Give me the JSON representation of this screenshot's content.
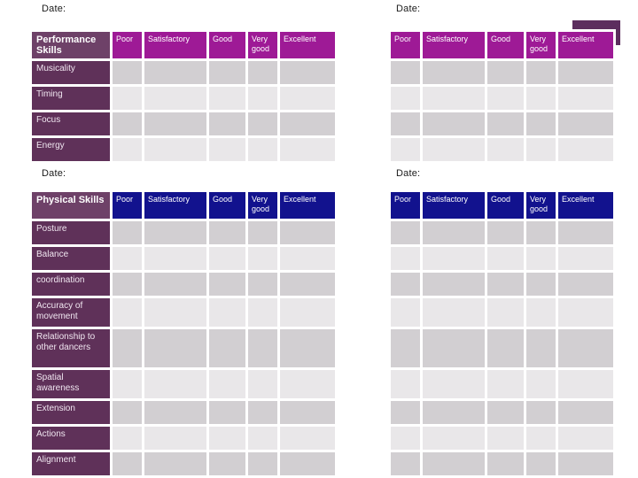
{
  "labels": {
    "date": "Date:"
  },
  "colors": {
    "magenta_header": "#9e1a96",
    "navy_header": "#12128e",
    "plum_title": "#6e4168",
    "plum_row": "#5f3159",
    "cell_dark": "#d2cfd2",
    "cell_light": "#e9e7e9",
    "accent_rect": "#5c2e5e",
    "page_background": "#ffffff"
  },
  "rating_columns": [
    "Poor",
    "Satisfactory",
    "Good",
    "Very good",
    "Excellent"
  ],
  "tables": {
    "performance": {
      "title": "Performance Skills",
      "rows": [
        "Musicality",
        "Timing",
        "Focus",
        "Energy"
      ]
    },
    "physical": {
      "title": "Physical Skills",
      "rows": [
        "Posture",
        "Balance",
        "coordination",
        "Accuracy of movement",
        "Relationship to other dancers",
        "Spatial awareness",
        "Extension",
        "Actions",
        "Alignment"
      ]
    }
  }
}
